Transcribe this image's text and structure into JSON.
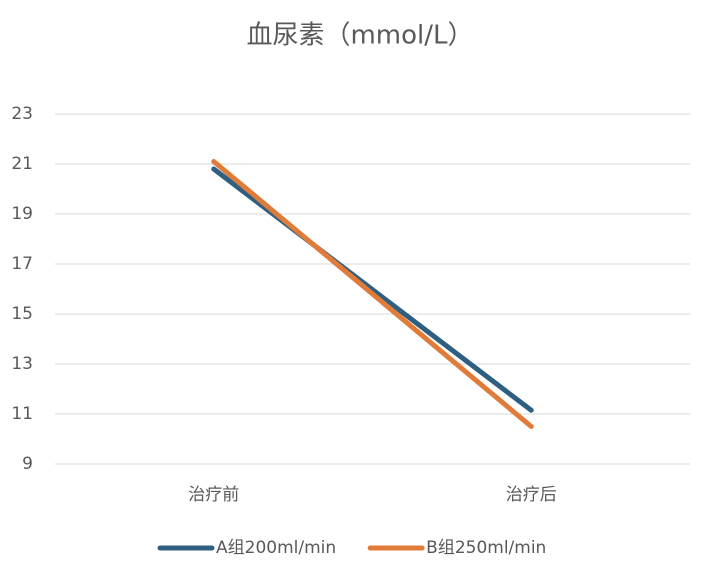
{
  "chart_data": {
    "type": "line",
    "title": "血尿素（mmol/L）",
    "categories": [
      "治疗前",
      "治疗后"
    ],
    "series": [
      {
        "name": "A组200ml/min",
        "color": "#2f5f80",
        "values": [
          20.8,
          11.15
        ]
      },
      {
        "name": "B组250ml/min",
        "color": "#e07b39",
        "values": [
          21.1,
          10.5
        ]
      }
    ],
    "ylim": [
      9,
      23
    ],
    "yticks": [
      9,
      11,
      13,
      15,
      17,
      19,
      21,
      23
    ],
    "grid": true,
    "legend": "bottom"
  }
}
